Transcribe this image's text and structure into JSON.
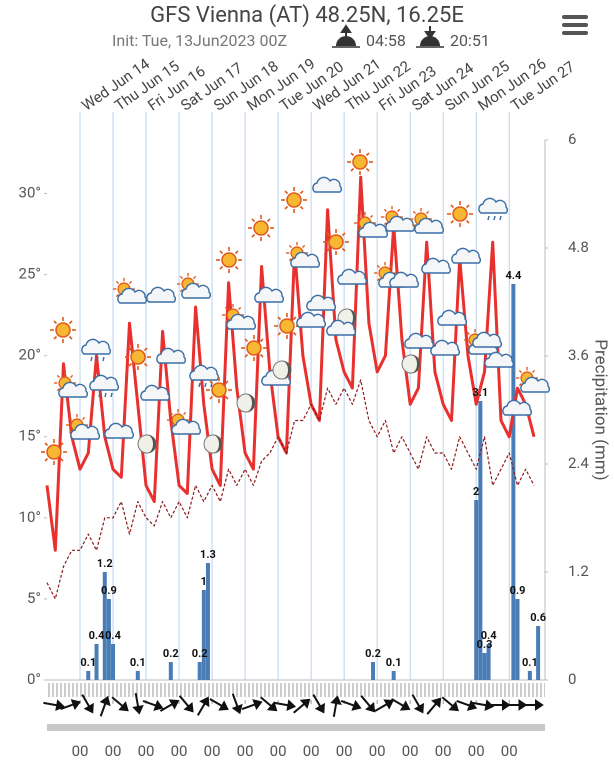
{
  "chart_data": {
    "type": "meteogram",
    "title": "GFS Vienna (AT) 48.25N, 16.25E",
    "subtitle": "Init: Tue, 13Jun2023 00Z",
    "sunrise": "04:58",
    "sunset": "20:51",
    "y2_label": "Precipitation (mm)",
    "xlim": [
      0,
      362
    ],
    "xticks": [
      {
        "value": 24,
        "label": "00"
      },
      {
        "value": 48,
        "label": "00"
      },
      {
        "value": 72,
        "label": "00"
      },
      {
        "value": 96,
        "label": "00"
      },
      {
        "value": 120,
        "label": "00"
      },
      {
        "value": 144,
        "label": "00"
      },
      {
        "value": 168,
        "label": "00"
      },
      {
        "value": 192,
        "label": "00"
      },
      {
        "value": 216,
        "label": "00"
      },
      {
        "value": 240,
        "label": "00"
      },
      {
        "value": 264,
        "label": "00"
      },
      {
        "value": 288,
        "label": "00"
      },
      {
        "value": 312,
        "label": "00"
      },
      {
        "value": 336,
        "label": "00"
      }
    ],
    "top_xticks": [
      {
        "value": 24,
        "label": "Wed Jun 14"
      },
      {
        "value": 48,
        "label": "Thu Jun 15"
      },
      {
        "value": 72,
        "label": "Fri Jun 16"
      },
      {
        "value": 96,
        "label": "Sat Jun 17"
      },
      {
        "value": 120,
        "label": "Sun Jun 18"
      },
      {
        "value": 144,
        "label": "Mon Jun 19"
      },
      {
        "value": 168,
        "label": "Tue Jun 20"
      },
      {
        "value": 192,
        "label": "Wed Jun 21"
      },
      {
        "value": 216,
        "label": "Thu Jun 22"
      },
      {
        "value": 240,
        "label": "Fri Jun 23"
      },
      {
        "value": 264,
        "label": "Sat Jun 24"
      },
      {
        "value": 288,
        "label": "Sun Jun 25"
      },
      {
        "value": 312,
        "label": "Mon Jun 26"
      },
      {
        "value": 336,
        "label": "Tue Jun 27"
      }
    ],
    "ylim": [
      0,
      33.3
    ],
    "yticks": [
      {
        "value": 0,
        "label": "0°"
      },
      {
        "value": 5,
        "label": "5°"
      },
      {
        "value": 10,
        "label": "10°"
      },
      {
        "value": 15,
        "label": "15°"
      },
      {
        "value": 20,
        "label": "20°"
      },
      {
        "value": 25,
        "label": "25°"
      },
      {
        "value": 30,
        "label": "30°"
      }
    ],
    "y2lim": [
      0,
      6
    ],
    "y2ticks": [
      0,
      1.2,
      2.4,
      3.6,
      4.8,
      6
    ],
    "x": [
      0,
      6,
      12,
      18,
      24,
      30,
      36,
      42,
      48,
      54,
      60,
      66,
      72,
      78,
      84,
      90,
      96,
      102,
      108,
      114,
      120,
      126,
      132,
      138,
      144,
      150,
      156,
      162,
      168,
      174,
      180,
      186,
      192,
      198,
      204,
      210,
      216,
      222,
      228,
      234,
      240,
      246,
      252,
      258,
      264,
      270,
      276,
      282,
      288,
      294,
      300,
      306,
      312,
      318,
      324,
      330,
      336,
      342,
      348,
      354
    ],
    "series": [
      {
        "kind": "line",
        "color": "#e8312f",
        "values": [
          12,
          8,
          19.5,
          15,
          13,
          14,
          20,
          15,
          13,
          12.5,
          22,
          17,
          12,
          11,
          21.5,
          16,
          12,
          11.5,
          23,
          17,
          13,
          12,
          24.5,
          18,
          14,
          13,
          25.5,
          19,
          15,
          14,
          26.5,
          20,
          17,
          16,
          29,
          21,
          19,
          18,
          31,
          22,
          19,
          20,
          28,
          21,
          17,
          18,
          27,
          19,
          17,
          16,
          26,
          20,
          17,
          19,
          27,
          16,
          15,
          18,
          17,
          15
        ]
      },
      {
        "kind": "dashed",
        "color": "#8b1a1a",
        "values": [
          6,
          5,
          7,
          8,
          8,
          9,
          8,
          10,
          10,
          11,
          9,
          11,
          10,
          9.5,
          11,
          10,
          11,
          10,
          12,
          11,
          12,
          11,
          13,
          12,
          13,
          12,
          13.5,
          14,
          15,
          14,
          16,
          16,
          17,
          16,
          18,
          17,
          18,
          17,
          18.5,
          16,
          15,
          16,
          14,
          15,
          14,
          13,
          15,
          14,
          14,
          13,
          15,
          14,
          13,
          15,
          12,
          13,
          14,
          12,
          13,
          12
        ]
      }
    ],
    "precipitation": {
      "axis": "y2",
      "color": "#4a7db5",
      "x": [
        30,
        36,
        42,
        45,
        48,
        66,
        90,
        111,
        114,
        117,
        237,
        252,
        312,
        315,
        318,
        321,
        339,
        342,
        351,
        357
      ],
      "values": [
        0.1,
        0.4,
        1.2,
        0.9,
        0.4,
        0.1,
        0.2,
        0.2,
        1.0,
        1.3,
        0.2,
        0.1,
        2.0,
        3.1,
        0.3,
        0.4,
        4.4,
        0.9,
        0.1,
        0.6
      ]
    },
    "wind": {
      "x": [
        6,
        18,
        30,
        42,
        54,
        66,
        78,
        90,
        102,
        114,
        126,
        138,
        150,
        162,
        174,
        186,
        198,
        210,
        222,
        234,
        246,
        258,
        270,
        282,
        294,
        306,
        318,
        330,
        342,
        354
      ],
      "direction": [
        10,
        -20,
        60,
        -70,
        40,
        80,
        20,
        -30,
        50,
        -60,
        30,
        70,
        -20,
        40,
        10,
        -40,
        60,
        -80,
        20,
        50,
        -30,
        30,
        60,
        -50,
        40,
        20,
        10,
        0,
        0,
        0
      ]
    }
  }
}
